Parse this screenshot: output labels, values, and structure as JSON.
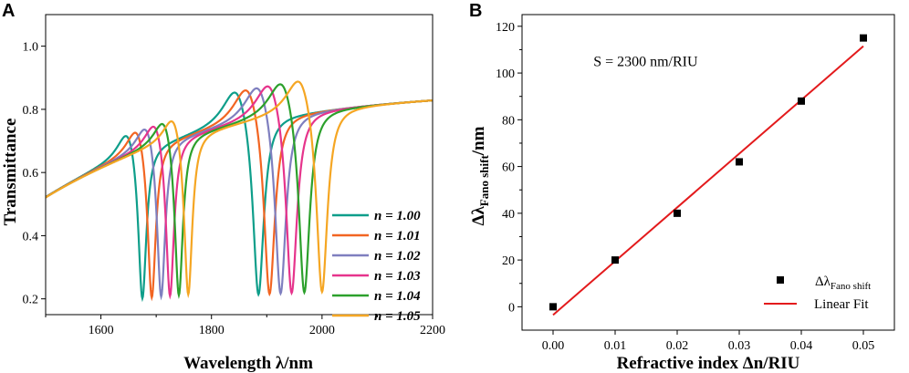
{
  "chart_data": [
    {
      "panel": "A",
      "type": "line",
      "xlabel": "Wavelength λ/nm",
      "ylabel": "Transmittance",
      "xlim": [
        1500,
        2200
      ],
      "ylim": [
        0.15,
        1.1
      ],
      "xticks": [
        1600,
        1800,
        2000,
        2200
      ],
      "yticks": [
        0.2,
        0.4,
        0.6,
        0.8,
        1.0
      ],
      "xtick_labels": [
        "1600",
        "1800",
        "2000",
        "2200"
      ],
      "ytick_labels": [
        "0.2",
        "0.4",
        "0.6",
        "0.8",
        "1.0"
      ],
      "legend_position": "bottom-right",
      "series": [
        {
          "name": "n = 1.00",
          "color": "#0e9e8a",
          "dip1": 1675,
          "dip2": 1885
        },
        {
          "name": "n = 1.01",
          "color": "#f26522",
          "dip1": 1692,
          "dip2": 1905
        },
        {
          "name": "n = 1.02",
          "color": "#7f7fbf",
          "dip1": 1709,
          "dip2": 1925
        },
        {
          "name": "n = 1.03",
          "color": "#e6348c",
          "dip1": 1725,
          "dip2": 1945
        },
        {
          "name": "n = 1.04",
          "color": "#2ca02c",
          "dip1": 1741,
          "dip2": 1968
        },
        {
          "name": "n = 1.05",
          "color": "#f5a623",
          "dip1": 1758,
          "dip2": 2000
        }
      ]
    },
    {
      "panel": "B",
      "type": "scatter",
      "xlabel": "Refractive index Δn/RIU",
      "ylabel_main": "Δλ",
      "ylabel_sub": "Fano shift",
      "ylabel_unit": "/nm",
      "xlim": [
        -0.005,
        0.055
      ],
      "ylim": [
        -10,
        125
      ],
      "xticks": [
        0.0,
        0.01,
        0.02,
        0.03,
        0.04,
        0.05
      ],
      "yticks": [
        0,
        20,
        40,
        60,
        80,
        100,
        120
      ],
      "xtick_labels": [
        "0.00",
        "0.01",
        "0.02",
        "0.03",
        "0.04",
        "0.05"
      ],
      "ytick_labels": [
        "0",
        "20",
        "40",
        "60",
        "80",
        "100",
        "120"
      ],
      "x": [
        0.0,
        0.01,
        0.02,
        0.03,
        0.04,
        0.05
      ],
      "y": [
        0,
        20,
        40,
        62,
        88,
        115
      ],
      "fit": {
        "slope": 2300,
        "intercept": -3.5,
        "color": "#e31a1c"
      },
      "annotation": "S = 2300 nm/RIU",
      "legend_marker_main": "Δλ",
      "legend_marker_sub": "Fano shift",
      "legend_fit": "Linear Fit",
      "legend_position": "bottom-right"
    }
  ]
}
